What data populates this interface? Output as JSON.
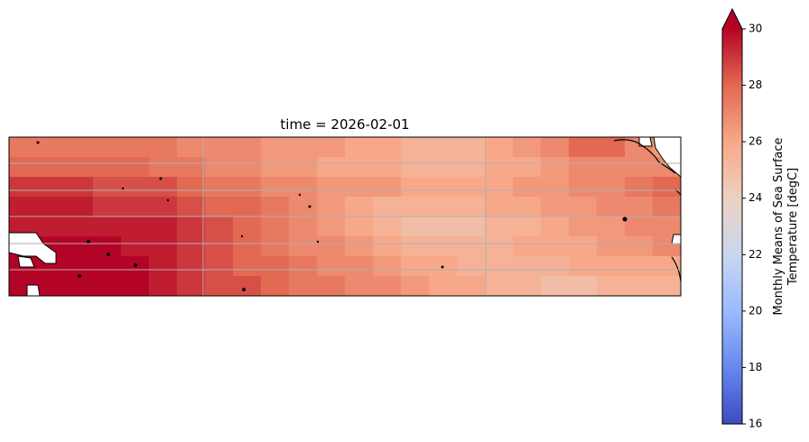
{
  "chart_data": {
    "type": "heatmap",
    "title": "time = 2026-02-01",
    "values": [
      [
        27.5,
        27.5,
        27.5,
        27.5,
        27.5,
        27.5,
        27,
        27,
        27,
        26.5,
        26.5,
        26.5,
        26,
        26,
        25.5,
        25.5,
        25.5,
        26,
        26.5,
        27,
        28,
        28,
        27,
        26.5
      ],
      [
        28,
        28,
        28,
        28,
        28,
        27.5,
        27.5,
        27,
        27,
        26.5,
        26.5,
        26,
        26,
        26,
        25.5,
        25.5,
        25.5,
        26,
        26,
        26.5,
        27,
        27,
        27,
        27
      ],
      [
        29,
        29,
        29,
        28.5,
        28.5,
        28.5,
        28,
        27.5,
        27.5,
        27,
        27,
        26.5,
        26.5,
        26.5,
        26,
        26,
        26,
        26,
        26.5,
        26.5,
        27,
        27,
        27.5,
        28
      ],
      [
        29.5,
        29.5,
        29.5,
        29,
        29,
        29,
        28.5,
        28,
        28,
        27.5,
        27,
        26.5,
        26,
        25.5,
        25.5,
        25.5,
        25.5,
        26,
        26,
        26.5,
        26.5,
        27,
        27,
        27.5
      ],
      [
        29.5,
        29.5,
        29.5,
        29.5,
        29.5,
        29.5,
        29,
        28.5,
        28,
        27.5,
        27,
        26.5,
        26,
        25.5,
        25,
        25,
        25,
        25.5,
        25.5,
        26,
        26.5,
        26.5,
        27,
        27
      ],
      [
        30,
        30,
        30,
        30,
        29.5,
        29.5,
        29,
        28.5,
        28,
        27.5,
        27,
        27,
        26.5,
        26,
        25.5,
        25.5,
        25.5,
        25.5,
        26,
        26,
        26,
        26.5,
        26.5,
        27
      ],
      [
        30,
        30,
        30,
        30,
        30,
        29.5,
        29,
        28.5,
        28,
        28,
        27.5,
        27,
        27,
        26.5,
        26,
        26,
        25.5,
        25.5,
        25.5,
        25.5,
        26,
        26,
        26,
        26
      ],
      [
        30,
        30,
        30,
        30,
        30,
        29.5,
        29,
        28.5,
        28.5,
        28,
        27.5,
        27.5,
        27,
        27,
        26.5,
        26,
        26,
        25.5,
        25.5,
        25,
        25,
        25.5,
        25.5,
        25.5
      ]
    ],
    "colormap": [
      "#3b4cc0",
      "#6788ee",
      "#9abbff",
      "#c9d7f0",
      "#edd1c2",
      "#f7a889",
      "#e26952",
      "#b40426"
    ],
    "colorbar": {
      "label": [
        "Monthly Means of Sea Surface",
        "Temperature [degC]"
      ],
      "lim": [
        16,
        30
      ],
      "ticks": [
        16,
        18,
        20,
        22,
        24,
        26,
        28,
        30
      ],
      "extend": "max"
    }
  }
}
